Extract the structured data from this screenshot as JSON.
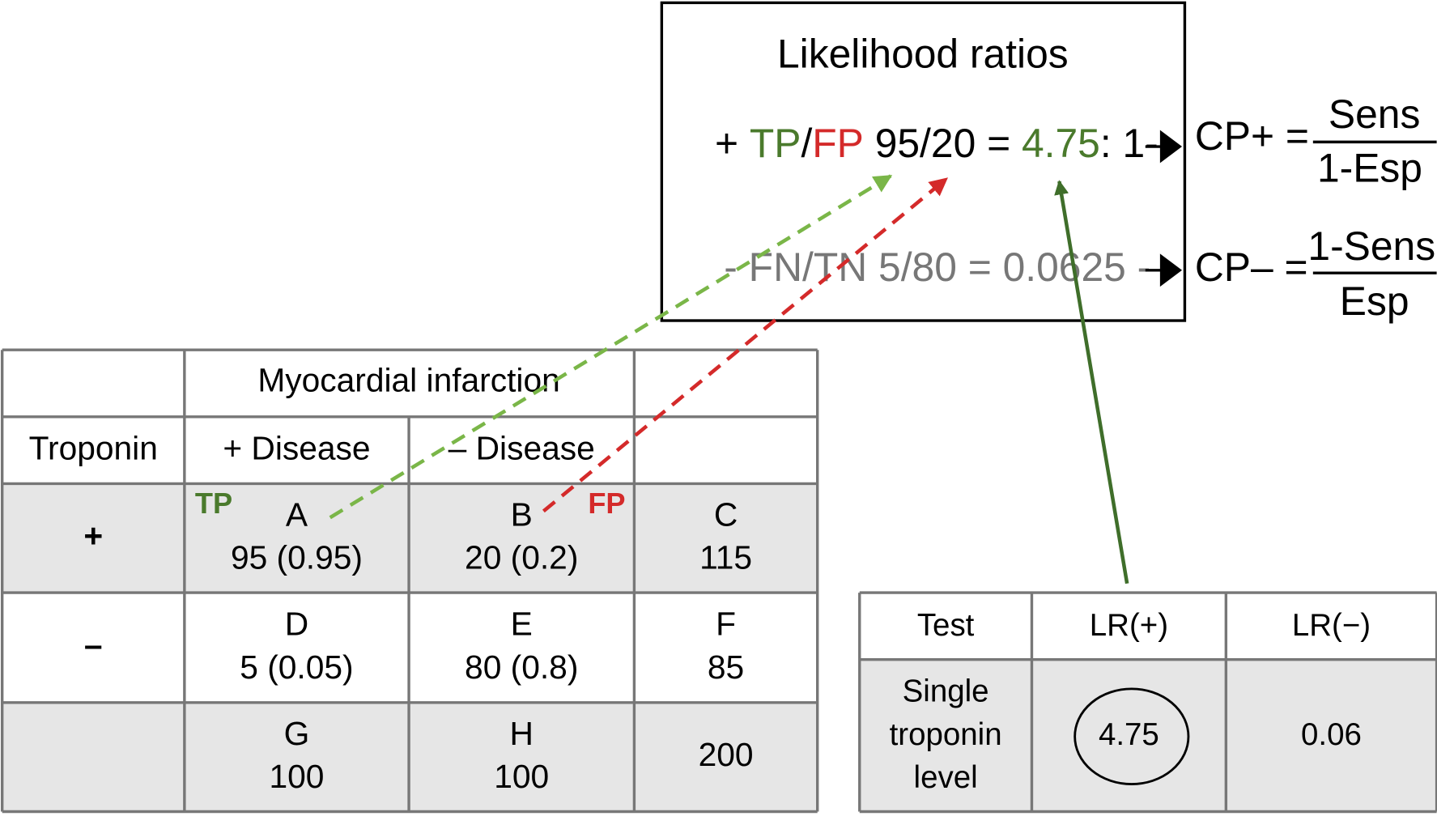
{
  "likelihood_box": {
    "title": "Likelihood ratios",
    "positive": {
      "sign": "+ ",
      "tp": "TP",
      "slash": "/",
      "fp": "FP",
      "ratio": " 95/20 = ",
      "value": "4.75",
      "suffix": ": 1-"
    },
    "negative": "- FN/TN 5/80 = 0.0625 -"
  },
  "formulas": {
    "positive": {
      "label": "CP+ =",
      "numerator": "Sens",
      "denominator": "1-Esp"
    },
    "negative": {
      "label": "CP– =",
      "numerator": "1-Sens",
      "denominator": "Esp"
    }
  },
  "table": {
    "header": "Myocardial infarction",
    "row_header": "Troponin",
    "columns": [
      "+ Disease",
      "– Disease"
    ],
    "tags": {
      "tp": "TP",
      "fp": "FP"
    },
    "rows": [
      {
        "label": "+",
        "cells": [
          {
            "letter": "A",
            "value": "95 (0.95)"
          },
          {
            "letter": "B",
            "value": "20 (0.2)"
          },
          {
            "letter": "C",
            "value": "115"
          }
        ]
      },
      {
        "label": "–",
        "cells": [
          {
            "letter": "D",
            "value": "5 (0.05)"
          },
          {
            "letter": "E",
            "value": "80 (0.8)"
          },
          {
            "letter": "F",
            "value": "85"
          }
        ]
      },
      {
        "cells": [
          {
            "letter": "G",
            "value": "100"
          },
          {
            "letter": "H",
            "value": "100"
          },
          {
            "value": "200"
          }
        ]
      }
    ]
  },
  "test_table": {
    "headers": [
      "Test",
      "LR(+)",
      "LR(−)"
    ],
    "row": {
      "test": [
        "Single",
        "troponin",
        "level"
      ],
      "lr_pos": "4.75",
      "lr_neg": "0.06"
    }
  }
}
